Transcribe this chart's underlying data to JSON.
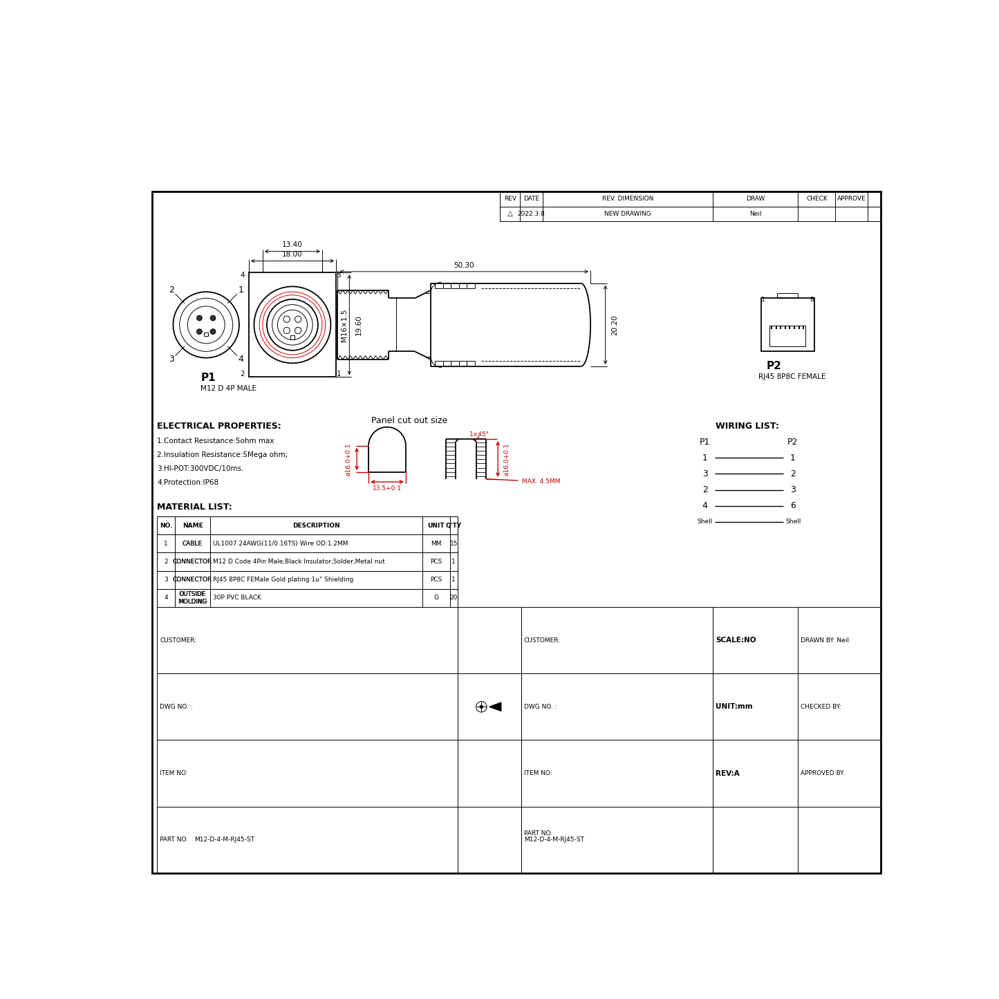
{
  "bg_color": "#ffffff",
  "border_color": "#000000",
  "red_color": "#cc0000",
  "title_block_headers": [
    "REV",
    "DATE",
    "REV. DIMENSION",
    "DRAW",
    "CHECK",
    "APPROVE"
  ],
  "title_block_values": [
    "△",
    "2022.3.8",
    "NEW DRAWING",
    "Neil",
    "",
    ""
  ],
  "p1_label": "P1",
  "p1_sublabel": "M12 D 4P MALE",
  "p2_label": "P2",
  "p2_sublabel": "RJ45 8P8C FEMALE",
  "dim_18": "18.00",
  "dim_13_40": "13.40",
  "dim_19_60": "19.60",
  "dim_m16": "M16×1.5",
  "dim_50_30": "50.30",
  "dim_20_20": "20.20",
  "elec_title": "ELECTRICAL PROPERTIES:",
  "elec_props": [
    "1.Contact Resistance:5ohm max",
    "2.Insulation Resistance:5Mega ohm;",
    "3.HI-POT:300VDC/10ms.",
    "4.Protection:IP68"
  ],
  "mat_title": "MATERIAL LIST:",
  "mat_headers": [
    "NO.",
    "NAME",
    "DESCRIPTION",
    "UNIT",
    "Q'TY"
  ],
  "mat_rows": [
    [
      "1",
      "CABLE",
      "UL1007 24AWG(11/0.16TS) Wire OD:1.2MM",
      "MM",
      "15"
    ],
    [
      "2",
      "CONNECTOR",
      "M12 D Code 4Pin Male,Black Insulator,Solder,Metal nut",
      "PCS",
      "1"
    ],
    [
      "3",
      "CONNECTOR",
      "RJ45 8P8C FEMale Gold plating 1u\" Shielding",
      "PCS",
      "1"
    ],
    [
      "4",
      "OUTSIDE\nMOLDING",
      "30P PVC BLACK",
      "G",
      "20"
    ]
  ],
  "panel_title": "Panel cut out size",
  "panel_dim_d1": "ø16.0+0.1",
  "panel_dim_d2": "ø16.0+0.1",
  "panel_dim_w": "13.5+0.1",
  "panel_dim_max": "MAX. 4.5MM",
  "panel_angle": "1×45°",
  "wiring_title": "WIRING LIST:",
  "wiring_p1": "P1",
  "wiring_p2": "P2",
  "wiring_rows": [
    [
      "1",
      "1"
    ],
    [
      "3",
      "2"
    ],
    [
      "2",
      "3"
    ],
    [
      "4",
      "6"
    ]
  ],
  "wiring_shell": [
    "Shell",
    "Shell"
  ],
  "bottom_labels": [
    "CUSTOMER:",
    "DWG NO. :",
    "ITEM NO:",
    "PART NO:"
  ],
  "bottom_part_no": "M12-D-4-M-RJ45-ST",
  "bottom_right_left": [
    "SCALE:NO",
    "UNIT:mm",
    "REV:A"
  ],
  "bottom_right_right": [
    "DRAWN BY: Neil",
    "CHECKED BY:",
    "APPROVED BY:"
  ]
}
